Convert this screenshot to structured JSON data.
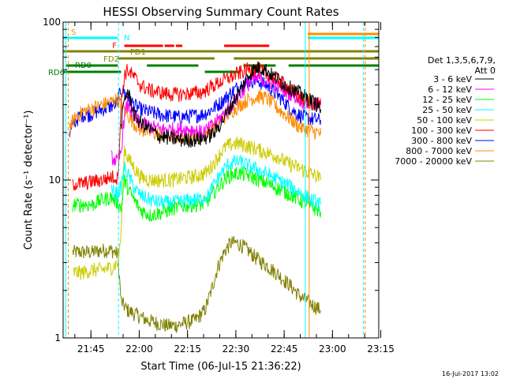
{
  "chart_data": {
    "type": "line",
    "title": "HESSI Observing Summary Count Rates",
    "xlabel": "Start Time (06-Jul-15 21:36:22)",
    "ylabel": "Count Rate (s⁻¹ detector⁻¹)",
    "yscale": "log",
    "ylim": [
      1,
      100
    ],
    "xlim_minutes": [
      0,
      98
    ],
    "x_ticks": [
      "21:45",
      "22:00",
      "22:15",
      "22:30",
      "22:45",
      "23:00",
      "23:15"
    ],
    "y_ticks": [
      "1",
      "10",
      "100"
    ],
    "legend_header": [
      "Det 1,3,5,6,7,9,",
      "Att 0"
    ],
    "legend_position": "right",
    "footer": "16-Jul-2017 13:02",
    "flag_labels": [
      "S",
      "N",
      "F",
      "FD1",
      "FD2",
      "RD0",
      "RD6"
    ],
    "series": [
      {
        "name": "3 - 6 keV",
        "color": "#000000",
        "points": [
          [
            18,
            22
          ],
          [
            19,
            32
          ],
          [
            20,
            36
          ],
          [
            21,
            32
          ],
          [
            22,
            26
          ],
          [
            24,
            23
          ],
          [
            27,
            21
          ],
          [
            30,
            19
          ],
          [
            33,
            18.5
          ],
          [
            36,
            18
          ],
          [
            40,
            18
          ],
          [
            43,
            18.2
          ],
          [
            45,
            19
          ],
          [
            47,
            20
          ],
          [
            49,
            23
          ],
          [
            51,
            27
          ],
          [
            53,
            32
          ],
          [
            55,
            37
          ],
          [
            57,
            44
          ],
          [
            59,
            50
          ],
          [
            61,
            52
          ],
          [
            63,
            50
          ],
          [
            65,
            46
          ],
          [
            67,
            43
          ],
          [
            69,
            40
          ],
          [
            71,
            38
          ],
          [
            73,
            36
          ],
          [
            75,
            34
          ],
          [
            77,
            32
          ],
          [
            79,
            30
          ],
          [
            80,
            28
          ]
        ]
      },
      {
        "name": "6 - 12 keV",
        "color": "#ff00ff",
        "points": [
          [
            15,
            14
          ],
          [
            17,
            13
          ],
          [
            18,
            15
          ],
          [
            19,
            26
          ],
          [
            20,
            30
          ],
          [
            21,
            28
          ],
          [
            22,
            25
          ],
          [
            24,
            23
          ],
          [
            27,
            22
          ],
          [
            30,
            21
          ],
          [
            33,
            21
          ],
          [
            36,
            21
          ],
          [
            40,
            21
          ],
          [
            43,
            20
          ],
          [
            45,
            21
          ],
          [
            47,
            23
          ],
          [
            49,
            25
          ],
          [
            51,
            28
          ],
          [
            53,
            31
          ],
          [
            55,
            35
          ],
          [
            57,
            40
          ],
          [
            59,
            43
          ],
          [
            61,
            44
          ],
          [
            63,
            43
          ],
          [
            65,
            41
          ],
          [
            67,
            39
          ],
          [
            69,
            37
          ],
          [
            71,
            35
          ],
          [
            73,
            33
          ],
          [
            75,
            31
          ],
          [
            77,
            30
          ],
          [
            79,
            30
          ],
          [
            80,
            30
          ]
        ]
      },
      {
        "name": "12 - 25 keV",
        "color": "#00ff00",
        "points": [
          [
            3,
            7
          ],
          [
            6,
            7
          ],
          [
            9,
            7
          ],
          [
            12,
            7.5
          ],
          [
            15,
            7.8
          ],
          [
            17,
            7.2
          ],
          [
            18,
            6.5
          ],
          [
            19,
            10
          ],
          [
            20,
            9
          ],
          [
            22,
            7.5
          ],
          [
            24,
            6.5
          ],
          [
            27,
            6
          ],
          [
            30,
            6.2
          ],
          [
            33,
            6.5
          ],
          [
            36,
            6.8
          ],
          [
            40,
            7
          ],
          [
            43,
            7
          ],
          [
            45,
            7.5
          ],
          [
            47,
            8.5
          ],
          [
            49,
            9.5
          ],
          [
            51,
            10.5
          ],
          [
            53,
            11
          ],
          [
            55,
            11
          ],
          [
            57,
            10.8
          ],
          [
            59,
            10.4
          ],
          [
            61,
            10
          ],
          [
            63,
            9.6
          ],
          [
            65,
            9.2
          ],
          [
            67,
            8.8
          ],
          [
            69,
            8.4
          ],
          [
            71,
            8
          ],
          [
            73,
            7.6
          ],
          [
            75,
            7.2
          ],
          [
            77,
            6.8
          ],
          [
            79,
            6.5
          ],
          [
            80,
            6.3
          ]
        ]
      },
      {
        "name": "25 - 50 keV",
        "color": "#00ffff",
        "points": [
          [
            15,
            8.5
          ],
          [
            17,
            8.3
          ],
          [
            18,
            9
          ],
          [
            19,
            12
          ],
          [
            20,
            11
          ],
          [
            22,
            9
          ],
          [
            24,
            8
          ],
          [
            27,
            7.5
          ],
          [
            30,
            7.2
          ],
          [
            33,
            7.2
          ],
          [
            36,
            7.3
          ],
          [
            40,
            7.5
          ],
          [
            43,
            7.6
          ],
          [
            45,
            8
          ],
          [
            47,
            9.5
          ],
          [
            49,
            11
          ],
          [
            51,
            12.5
          ],
          [
            53,
            13
          ],
          [
            55,
            13
          ],
          [
            57,
            12.5
          ],
          [
            59,
            12
          ],
          [
            61,
            11.5
          ],
          [
            63,
            11
          ],
          [
            65,
            10.5
          ],
          [
            67,
            10
          ],
          [
            69,
            9.5
          ],
          [
            71,
            9
          ],
          [
            73,
            8.5
          ],
          [
            75,
            8
          ],
          [
            77,
            7.5
          ],
          [
            79,
            7.2
          ],
          [
            80,
            7
          ]
        ]
      },
      {
        "name": "50 - 100 keV",
        "color": "#cccc00",
        "points": [
          [
            3,
            2.6
          ],
          [
            6,
            2.6
          ],
          [
            9,
            2.7
          ],
          [
            12,
            2.7
          ],
          [
            15,
            2.8
          ],
          [
            17,
            3
          ],
          [
            18,
            4.5
          ],
          [
            19,
            16
          ],
          [
            20,
            14
          ],
          [
            22,
            12
          ],
          [
            24,
            10.5
          ],
          [
            27,
            10
          ],
          [
            30,
            10
          ],
          [
            33,
            10
          ],
          [
            36,
            10.2
          ],
          [
            40,
            10.5
          ],
          [
            43,
            10.8
          ],
          [
            45,
            11.5
          ],
          [
            47,
            13
          ],
          [
            49,
            15
          ],
          [
            51,
            16.5
          ],
          [
            53,
            17
          ],
          [
            55,
            17
          ],
          [
            57,
            16.5
          ],
          [
            59,
            16
          ],
          [
            61,
            15.5
          ],
          [
            63,
            15
          ],
          [
            65,
            14.5
          ],
          [
            67,
            14
          ],
          [
            69,
            13
          ],
          [
            71,
            12.5
          ],
          [
            73,
            12
          ],
          [
            75,
            11.5
          ],
          [
            77,
            11
          ],
          [
            79,
            10.5
          ],
          [
            80,
            10
          ]
        ]
      },
      {
        "name": "100 - 300 keV",
        "color": "#ff0000",
        "points": [
          [
            3,
            9.5
          ],
          [
            6,
            9.5
          ],
          [
            9,
            9.8
          ],
          [
            12,
            10
          ],
          [
            15,
            10.5
          ],
          [
            17,
            10.3
          ],
          [
            18,
            30
          ],
          [
            19,
            46
          ],
          [
            20,
            50
          ],
          [
            22,
            45
          ],
          [
            24,
            40
          ],
          [
            27,
            37
          ],
          [
            30,
            36
          ],
          [
            33,
            35
          ],
          [
            36,
            35
          ],
          [
            40,
            35.5
          ],
          [
            43,
            36
          ],
          [
            45,
            38
          ],
          [
            47,
            40
          ],
          [
            49,
            42
          ],
          [
            51,
            44
          ],
          [
            53,
            46
          ],
          [
            55,
            48
          ],
          [
            57,
            50
          ],
          [
            59,
            51
          ],
          [
            61,
            50
          ],
          [
            63,
            47
          ],
          [
            65,
            45
          ],
          [
            67,
            43
          ],
          [
            69,
            40
          ],
          [
            71,
            37
          ],
          [
            73,
            34
          ],
          [
            75,
            32
          ],
          [
            77,
            31
          ],
          [
            79,
            31
          ],
          [
            80,
            30
          ]
        ]
      },
      {
        "name": "300 - 800 keV",
        "color": "#0000ff",
        "points": [
          [
            2,
            20
          ],
          [
            4,
            24
          ],
          [
            6,
            26
          ],
          [
            8,
            26
          ],
          [
            10,
            27
          ],
          [
            12,
            28
          ],
          [
            14,
            29
          ],
          [
            16,
            30
          ],
          [
            17,
            31
          ],
          [
            18,
            38
          ],
          [
            19,
            36
          ],
          [
            20,
            34
          ],
          [
            22,
            30
          ],
          [
            24,
            28
          ],
          [
            27,
            27
          ],
          [
            30,
            26
          ],
          [
            33,
            25.5
          ],
          [
            36,
            25
          ],
          [
            40,
            25.5
          ],
          [
            43,
            26
          ],
          [
            45,
            27
          ],
          [
            47,
            29
          ],
          [
            49,
            31
          ],
          [
            51,
            34
          ],
          [
            53,
            37
          ],
          [
            55,
            40
          ],
          [
            57,
            42
          ],
          [
            59,
            43
          ],
          [
            61,
            42
          ],
          [
            63,
            40
          ],
          [
            65,
            37
          ],
          [
            67,
            34
          ],
          [
            69,
            31
          ],
          [
            71,
            28
          ],
          [
            73,
            26
          ],
          [
            75,
            25
          ],
          [
            77,
            24.5
          ],
          [
            79,
            24
          ],
          [
            80,
            24
          ]
        ]
      },
      {
        "name": "800 - 7000 keV",
        "color": "#ff8c00",
        "points": [
          [
            2,
            22
          ],
          [
            4,
            25
          ],
          [
            6,
            27
          ],
          [
            8,
            28
          ],
          [
            10,
            29
          ],
          [
            12,
            30
          ],
          [
            14,
            31
          ],
          [
            16,
            32
          ],
          [
            17,
            33
          ],
          [
            18,
            30
          ],
          [
            19,
            28
          ],
          [
            20,
            26
          ],
          [
            22,
            23
          ],
          [
            24,
            21
          ],
          [
            27,
            20
          ],
          [
            30,
            19.5
          ],
          [
            33,
            19
          ],
          [
            36,
            19
          ],
          [
            40,
            19
          ],
          [
            43,
            19.5
          ],
          [
            45,
            20
          ],
          [
            47,
            22
          ],
          [
            49,
            24
          ],
          [
            51,
            26
          ],
          [
            53,
            28
          ],
          [
            55,
            30
          ],
          [
            57,
            32
          ],
          [
            59,
            33
          ],
          [
            61,
            34
          ],
          [
            63,
            33
          ],
          [
            65,
            31
          ],
          [
            67,
            28
          ],
          [
            69,
            26
          ],
          [
            71,
            24
          ],
          [
            73,
            22
          ],
          [
            75,
            21
          ],
          [
            77,
            20.5
          ],
          [
            79,
            20
          ],
          [
            80,
            19.5
          ]
        ]
      },
      {
        "name": "7000 - 20000 keV",
        "color": "#808000",
        "points": [
          [
            3,
            3.5
          ],
          [
            6,
            3.5
          ],
          [
            9,
            3.5
          ],
          [
            12,
            3.6
          ],
          [
            15,
            3.6
          ],
          [
            17,
            3.4
          ],
          [
            18,
            1.7
          ],
          [
            20,
            1.5
          ],
          [
            23,
            1.4
          ],
          [
            26,
            1.3
          ],
          [
            29,
            1.25
          ],
          [
            32,
            1.2
          ],
          [
            35,
            1.2
          ],
          [
            38,
            1.25
          ],
          [
            41,
            1.3
          ],
          [
            44,
            1.5
          ],
          [
            46,
            2
          ],
          [
            48,
            2.8
          ],
          [
            50,
            3.5
          ],
          [
            52,
            4
          ],
          [
            54,
            4
          ],
          [
            56,
            3.8
          ],
          [
            58,
            3.5
          ],
          [
            60,
            3.2
          ],
          [
            62,
            3
          ],
          [
            64,
            2.8
          ],
          [
            66,
            2.6
          ],
          [
            68,
            2.4
          ],
          [
            70,
            2.2
          ],
          [
            72,
            2
          ],
          [
            74,
            1.8
          ],
          [
            76,
            1.7
          ],
          [
            78,
            1.6
          ],
          [
            80,
            1.5
          ]
        ]
      }
    ]
  }
}
